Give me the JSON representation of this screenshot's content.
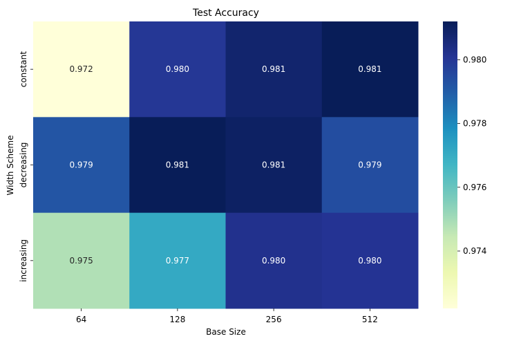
{
  "chart_data": {
    "type": "heatmap",
    "title": "Test Accuracy",
    "xlabel": "Base Size",
    "ylabel": "Width Scheme",
    "x_categories": [
      "64",
      "128",
      "256",
      "512"
    ],
    "y_categories": [
      "constant",
      "decreasing",
      "increasing"
    ],
    "values": [
      [
        0.9722,
        0.98,
        0.9808,
        0.9812
      ],
      [
        0.9792,
        0.9812,
        0.981,
        0.9794
      ],
      [
        0.9748,
        0.9771,
        0.9802,
        0.9801
      ]
    ],
    "cell_labels": [
      [
        "0.972",
        "0.980",
        "0.981",
        "0.981"
      ],
      [
        "0.979",
        "0.981",
        "0.981",
        "0.979"
      ],
      [
        "0.975",
        "0.977",
        "0.980",
        "0.980"
      ]
    ],
    "color_range": [
      0.9722,
      0.9812
    ],
    "colormap": "YlGnBu",
    "colorbar_ticks": [
      0.974,
      0.976,
      0.978,
      0.98
    ],
    "colorbar_tick_labels": [
      "0.974",
      "0.976",
      "0.978",
      "0.980"
    ],
    "colormap_stops": [
      "#ffffd9",
      "#edf8b1",
      "#c7e9b4",
      "#7fcdbb",
      "#41b6c4",
      "#1d91c0",
      "#225ea8",
      "#253494",
      "#081d58"
    ]
  }
}
